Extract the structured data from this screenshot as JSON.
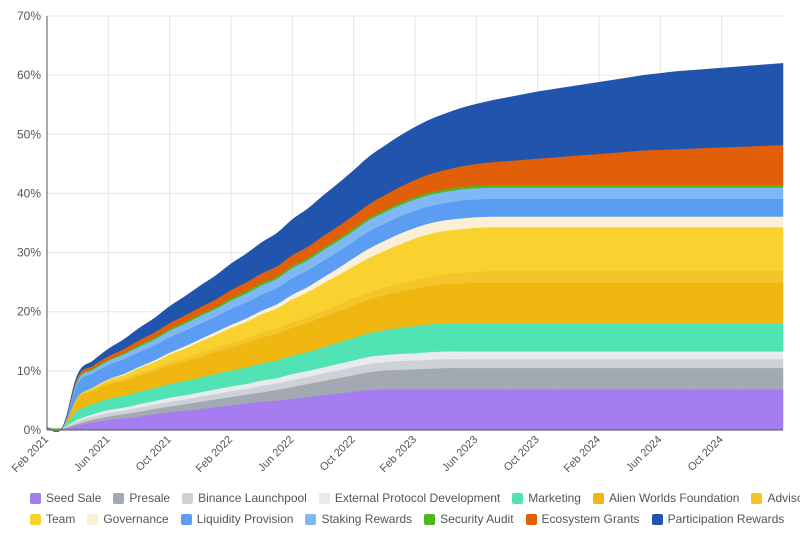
{
  "chart_data": {
    "type": "area",
    "stacked": true,
    "title": "",
    "xlabel": "",
    "ylabel": "",
    "ylim": [
      0,
      70
    ],
    "yticks": [
      "0%",
      "10%",
      "20%",
      "30%",
      "40%",
      "50%",
      "60%",
      "70%"
    ],
    "ytick_values": [
      0,
      10,
      20,
      30,
      40,
      50,
      60,
      70
    ],
    "xticks": [
      "Feb 2021",
      "Jun 2021",
      "Oct 2021",
      "Feb 2022",
      "Jun 2022",
      "Oct 2022",
      "Feb 2023",
      "Jun 2023",
      "Oct 2023",
      "Feb 2024",
      "Jun 2024",
      "Oct 2024"
    ],
    "xtick_index": [
      0,
      4,
      8,
      12,
      16,
      20,
      24,
      28,
      32,
      36,
      40,
      44
    ],
    "x": [
      "Jan 2021",
      "Feb 2021",
      "Mar 2021",
      "Apr 2021",
      "May 2021",
      "Jun 2021",
      "Jul 2021",
      "Aug 2021",
      "Sep 2021",
      "Oct 2021",
      "Nov 2021",
      "Dec 2021",
      "Jan 2022",
      "Feb 2022",
      "Mar 2022",
      "Apr 2022",
      "May 2022",
      "Jun 2022",
      "Jul 2022",
      "Aug 2022",
      "Sep 2022",
      "Oct 2022",
      "Nov 2022",
      "Dec 2022",
      "Jan 2023",
      "Feb 2023",
      "Mar 2023",
      "Apr 2023",
      "May 2023",
      "Jun 2023",
      "Jul 2023",
      "Aug 2023",
      "Sep 2023",
      "Oct 2023",
      "Nov 2023",
      "Dec 2023",
      "Jan 2024",
      "Feb 2024",
      "Mar 2024",
      "Apr 2024",
      "May 2024",
      "Jun 2024",
      "Jul 2024",
      "Aug 2024",
      "Sep 2024",
      "Oct 2024",
      "Nov 2024",
      "Dec 2024",
      "Jan 2025"
    ],
    "x_start": 0,
    "x_end": 48,
    "legend_position": "bottom",
    "series": [
      {
        "name": "Seed Sale",
        "color": "#a57df0",
        "values": [
          0.2,
          0.2,
          0.8,
          1.3,
          1.7,
          2.0,
          2.3,
          2.7,
          3.0,
          3.3,
          3.6,
          3.9,
          4.2,
          4.5,
          4.8,
          5.0,
          5.3,
          5.6,
          5.9,
          6.2,
          6.5,
          6.8,
          6.9,
          6.9,
          6.9,
          6.9,
          6.9,
          6.9,
          6.9,
          6.9,
          6.9,
          6.9,
          6.9,
          6.9,
          6.9,
          6.9,
          6.9,
          6.9,
          6.9,
          6.9,
          6.9,
          6.9,
          6.9,
          6.9,
          6.9,
          6.9,
          6.9,
          6.9,
          6.9
        ]
      },
      {
        "name": "Presale",
        "color": "#a2a9b2",
        "values": [
          0.1,
          0.1,
          0.3,
          0.5,
          0.6,
          0.7,
          0.8,
          0.9,
          1.0,
          1.1,
          1.2,
          1.3,
          1.4,
          1.5,
          1.6,
          1.8,
          2.0,
          2.2,
          2.4,
          2.6,
          2.8,
          3.0,
          3.2,
          3.3,
          3.4,
          3.5,
          3.6,
          3.6,
          3.6,
          3.6,
          3.6,
          3.6,
          3.6,
          3.6,
          3.6,
          3.6,
          3.6,
          3.6,
          3.6,
          3.6,
          3.6,
          3.6,
          3.6,
          3.6,
          3.6,
          3.6,
          3.6,
          3.6,
          3.6
        ]
      },
      {
        "name": "Binance Launchpool",
        "color": "#ced2d8",
        "values": [
          0.1,
          0.1,
          0.4,
          0.5,
          0.6,
          0.6,
          0.7,
          0.7,
          0.8,
          0.8,
          0.9,
          0.9,
          1.0,
          1.0,
          1.1,
          1.1,
          1.2,
          1.2,
          1.3,
          1.3,
          1.4,
          1.4,
          1.4,
          1.5,
          1.5,
          1.5,
          1.5,
          1.5,
          1.5,
          1.5,
          1.5,
          1.5,
          1.5,
          1.5,
          1.5,
          1.5,
          1.5,
          1.5,
          1.5,
          1.5,
          1.5,
          1.5,
          1.5,
          1.5,
          1.5,
          1.5,
          1.5,
          1.5,
          1.5
        ]
      },
      {
        "name": "External Protocol Development",
        "color": "#e8eaed",
        "values": [
          0.0,
          0.0,
          0.3,
          0.4,
          0.5,
          0.5,
          0.6,
          0.6,
          0.7,
          0.7,
          0.7,
          0.8,
          0.8,
          0.8,
          0.9,
          0.9,
          1.0,
          1.0,
          1.0,
          1.1,
          1.1,
          1.2,
          1.2,
          1.2,
          1.2,
          1.3,
          1.3,
          1.3,
          1.3,
          1.3,
          1.3,
          1.3,
          1.3,
          1.3,
          1.3,
          1.3,
          1.3,
          1.3,
          1.3,
          1.3,
          1.3,
          1.3,
          1.3,
          1.3,
          1.3,
          1.3,
          1.3,
          1.3,
          1.3
        ]
      },
      {
        "name": "Marketing",
        "color": "#52e3b4",
        "values": [
          0.0,
          0.0,
          1.5,
          1.7,
          1.9,
          2.0,
          2.1,
          2.2,
          2.3,
          2.4,
          2.5,
          2.6,
          2.7,
          2.8,
          2.9,
          3.0,
          3.1,
          3.2,
          3.4,
          3.6,
          3.8,
          4.0,
          4.2,
          4.4,
          4.6,
          4.7,
          4.7,
          4.7,
          4.7,
          4.7,
          4.7,
          4.7,
          4.7,
          4.7,
          4.7,
          4.7,
          4.7,
          4.7,
          4.7,
          4.7,
          4.7,
          4.7,
          4.7,
          4.7,
          4.7,
          4.7,
          4.7,
          4.7,
          4.7
        ]
      },
      {
        "name": "Alien Worlds Foundation",
        "color": "#efb70f",
        "values": [
          0.0,
          0.0,
          2.0,
          2.2,
          2.4,
          2.5,
          2.7,
          2.9,
          3.1,
          3.3,
          3.5,
          3.7,
          3.9,
          4.1,
          4.3,
          4.5,
          4.7,
          4.9,
          5.1,
          5.3,
          5.5,
          5.7,
          5.9,
          6.1,
          6.3,
          6.5,
          6.7,
          6.8,
          6.9,
          6.9,
          6.9,
          6.9,
          6.9,
          6.9,
          6.9,
          6.9,
          6.9,
          6.9,
          6.9,
          6.9,
          6.9,
          6.9,
          6.9,
          6.9,
          6.9,
          6.9,
          6.9,
          6.9,
          6.9
        ]
      },
      {
        "name": "Advisors",
        "color": "#f3c52a",
        "values": [
          0.0,
          0.0,
          0.3,
          0.3,
          0.4,
          0.4,
          0.5,
          0.5,
          0.6,
          0.6,
          0.7,
          0.7,
          0.8,
          0.8,
          0.9,
          0.9,
          1.0,
          1.0,
          1.1,
          1.1,
          1.2,
          1.2,
          1.3,
          1.4,
          1.5,
          1.6,
          1.7,
          1.8,
          1.9,
          2.0,
          2.0,
          2.0,
          2.0,
          2.0,
          2.0,
          2.0,
          2.0,
          2.0,
          2.0,
          2.0,
          2.0,
          2.0,
          2.0,
          2.0,
          2.0,
          2.0,
          2.0,
          2.0,
          2.0
        ]
      },
      {
        "name": "Team",
        "color": "#fad22f",
        "values": [
          0.0,
          0.0,
          0.0,
          0.2,
          0.4,
          0.6,
          0.8,
          1.0,
          1.3,
          1.6,
          1.9,
          2.2,
          2.5,
          2.8,
          3.1,
          3.4,
          3.8,
          4.2,
          4.6,
          5.0,
          5.4,
          5.8,
          6.2,
          6.6,
          7.0,
          7.2,
          7.3,
          7.4,
          7.4,
          7.4,
          7.4,
          7.4,
          7.4,
          7.4,
          7.4,
          7.4,
          7.4,
          7.4,
          7.4,
          7.4,
          7.4,
          7.4,
          7.4,
          7.4,
          7.4,
          7.4,
          7.4,
          7.4,
          7.4
        ]
      },
      {
        "name": "Governance",
        "color": "#fbf0d6",
        "values": [
          0.0,
          0.0,
          0.0,
          0.1,
          0.1,
          0.2,
          0.2,
          0.3,
          0.3,
          0.4,
          0.4,
          0.5,
          0.5,
          0.6,
          0.6,
          0.7,
          0.8,
          0.9,
          1.0,
          1.2,
          1.4,
          1.6,
          1.7,
          1.8,
          1.8,
          1.8,
          1.8,
          1.8,
          1.8,
          1.8,
          1.8,
          1.8,
          1.8,
          1.8,
          1.8,
          1.8,
          1.8,
          1.8,
          1.8,
          1.8,
          1.8,
          1.8,
          1.8,
          1.8,
          1.8,
          1.8,
          1.8,
          1.8,
          1.8
        ]
      },
      {
        "name": "Liquidity Provision",
        "color": "#5b9df2",
        "values": [
          0.0,
          0.0,
          2.3,
          2.4,
          2.4,
          2.5,
          2.5,
          2.5,
          2.6,
          2.6,
          2.6,
          2.6,
          2.7,
          2.7,
          2.7,
          2.7,
          2.8,
          2.8,
          2.8,
          2.8,
          2.8,
          2.9,
          2.9,
          2.9,
          2.9,
          2.9,
          2.9,
          3.0,
          3.0,
          3.0,
          3.0,
          3.0,
          3.0,
          3.0,
          3.0,
          3.0,
          3.0,
          3.0,
          3.0,
          3.0,
          3.0,
          3.0,
          3.0,
          3.0,
          3.0,
          3.0,
          3.0,
          3.0,
          3.0
        ]
      },
      {
        "name": "Staking Rewards",
        "color": "#80b8f5",
        "values": [
          0.0,
          0.0,
          0.5,
          0.6,
          0.7,
          0.8,
          0.9,
          1.0,
          1.1,
          1.2,
          1.3,
          1.3,
          1.4,
          1.5,
          1.6,
          1.6,
          1.7,
          1.7,
          1.8,
          1.8,
          1.8,
          1.9,
          1.9,
          1.9,
          1.9,
          1.9,
          1.9,
          1.9,
          1.9,
          1.9,
          1.9,
          1.9,
          1.9,
          1.9,
          1.9,
          1.9,
          1.9,
          1.9,
          1.9,
          1.9,
          1.9,
          1.9,
          1.9,
          1.9,
          1.9,
          1.9,
          1.9,
          1.9,
          1.9
        ]
      },
      {
        "name": "Security Audit",
        "color": "#4fb81f",
        "values": [
          0.0,
          0.0,
          0.2,
          0.2,
          0.2,
          0.2,
          0.3,
          0.3,
          0.3,
          0.3,
          0.3,
          0.3,
          0.4,
          0.4,
          0.4,
          0.4,
          0.4,
          0.4,
          0.4,
          0.4,
          0.4,
          0.4,
          0.4,
          0.4,
          0.4,
          0.4,
          0.4,
          0.4,
          0.4,
          0.4,
          0.4,
          0.4,
          0.4,
          0.4,
          0.4,
          0.4,
          0.4,
          0.4,
          0.4,
          0.4,
          0.4,
          0.4,
          0.4,
          0.4,
          0.4,
          0.4,
          0.4,
          0.4,
          0.4
        ]
      },
      {
        "name": "Ecosystem Grants",
        "color": "#e15f08",
        "values": [
          0.0,
          0.0,
          0.4,
          0.5,
          0.6,
          0.7,
          0.8,
          0.9,
          1.0,
          1.1,
          1.2,
          1.3,
          1.4,
          1.5,
          1.6,
          1.7,
          1.8,
          1.9,
          2.0,
          2.1,
          2.2,
          2.3,
          2.5,
          2.7,
          2.9,
          3.1,
          3.3,
          3.5,
          3.7,
          3.9,
          4.1,
          4.3,
          4.5,
          4.7,
          4.9,
          5.1,
          5.3,
          5.5,
          5.7,
          5.9,
          6.0,
          6.1,
          6.2,
          6.3,
          6.4,
          6.5,
          6.6,
          6.7,
          6.8
        ]
      },
      {
        "name": "Participation Rewards",
        "color": "#2155ad",
        "values": [
          0.0,
          0.0,
          0.4,
          0.8,
          1.2,
          1.6,
          2.0,
          2.4,
          2.8,
          3.2,
          3.6,
          4.0,
          4.4,
          4.8,
          5.2,
          5.6,
          6.0,
          6.4,
          6.8,
          7.2,
          7.6,
          8.0,
          8.3,
          8.6,
          8.9,
          9.2,
          9.5,
          9.8,
          10.1,
          10.4,
          10.7,
          11.0,
          11.3,
          11.5,
          11.7,
          11.9,
          12.1,
          12.3,
          12.5,
          12.7,
          12.9,
          13.1,
          13.2,
          13.3,
          13.4,
          13.5,
          13.6,
          13.7,
          13.8
        ]
      }
    ]
  }
}
